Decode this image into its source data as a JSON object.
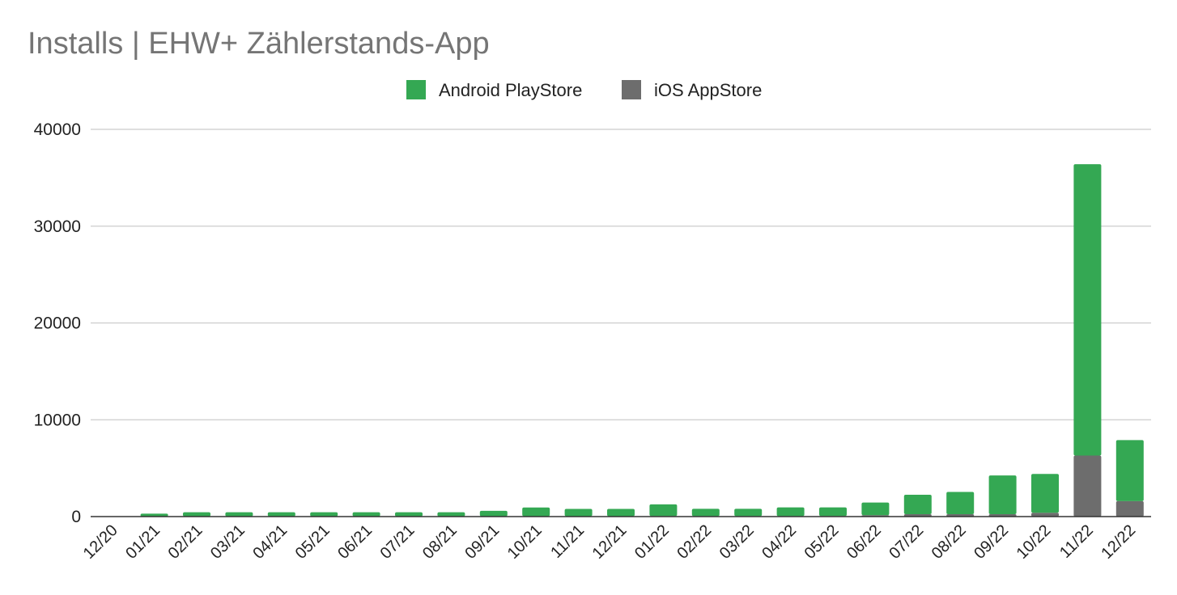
{
  "chart_data": {
    "type": "bar",
    "stacked": true,
    "title": "Installs | EHW+ Zählerstands-App",
    "xlabel": "",
    "ylabel": "",
    "ylim": [
      0,
      40000
    ],
    "y_ticks": [
      "0",
      "10000",
      "20000",
      "30000",
      "40000"
    ],
    "grid": true,
    "legend": "top-center",
    "categories": [
      "12/20",
      "01/21",
      "02/21",
      "03/21",
      "04/21",
      "05/21",
      "06/21",
      "07/21",
      "08/21",
      "09/21",
      "10/21",
      "11/21",
      "12/21",
      "01/22",
      "02/22",
      "03/22",
      "04/22",
      "05/22",
      "06/22",
      "07/22",
      "08/22",
      "09/22",
      "10/22",
      "11/22",
      "12/22"
    ],
    "series": [
      {
        "name": "iOS AppStore",
        "color": "#6d6d6d",
        "values": [
          0,
          20,
          20,
          20,
          20,
          20,
          20,
          20,
          20,
          30,
          40,
          40,
          40,
          60,
          50,
          50,
          50,
          60,
          150,
          250,
          250,
          250,
          400,
          6300,
          1600
        ]
      },
      {
        "name": "Android PlayStore",
        "color": "#34a853",
        "values": [
          0,
          280,
          430,
          430,
          430,
          430,
          430,
          430,
          430,
          570,
          900,
          750,
          750,
          1200,
          750,
          750,
          900,
          890,
          1300,
          2000,
          2300,
          4000,
          4000,
          30100,
          6300
        ]
      }
    ],
    "legend_order": [
      "Android PlayStore",
      "iOS AppStore"
    ]
  }
}
